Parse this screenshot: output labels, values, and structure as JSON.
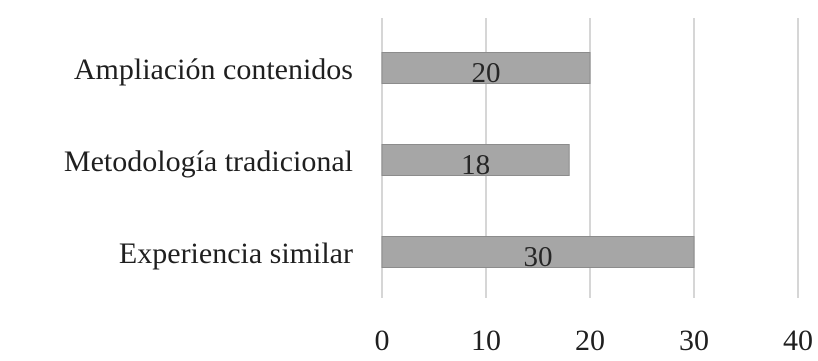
{
  "chart_data": {
    "type": "bar",
    "orientation": "horizontal",
    "categories": [
      "Ampliación contenidos",
      "Metodología tradicional",
      "Experiencia similar"
    ],
    "values": [
      20,
      18,
      30
    ],
    "data_labels": [
      "20",
      "18",
      "30"
    ],
    "xlim": [
      0,
      40
    ],
    "x_ticks": [
      0,
      10,
      20,
      30,
      40
    ],
    "x_tick_labels": [
      "0",
      "10",
      "20",
      "30",
      "40"
    ],
    "grid": true,
    "legend": "none",
    "title": "",
    "xlabel": "",
    "ylabel": "",
    "colors": {
      "bar": "#a6a6a6",
      "bar_edge": "#8c8c8c",
      "grid": "#d6d6d6",
      "text": "#1f1f1f"
    }
  }
}
